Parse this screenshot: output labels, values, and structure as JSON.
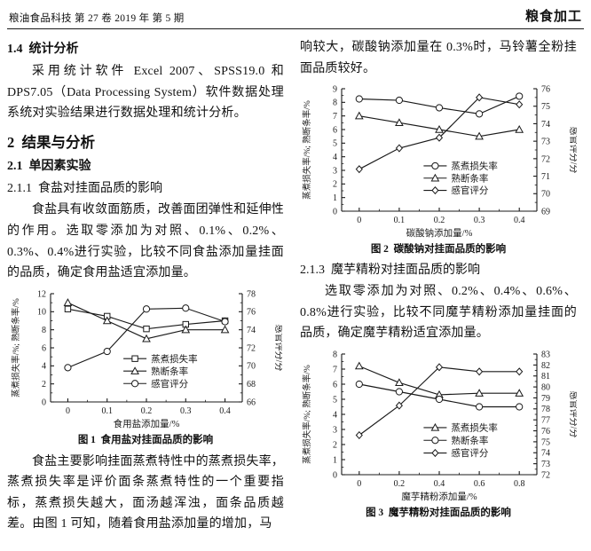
{
  "header": {
    "journal_info": "粮油食品科技 第 27 卷  2019 年  第 5 期",
    "section_label": "粮食加工"
  },
  "left_column": {
    "heading_1_4": "1.4  统计分析",
    "para_stats": "采用统计软件 Excel 2007、SPSS19.0 和 DPS7.05（Data Processing System）软件数据处理系统对实验结果进行数据处理和统计分析。",
    "heading_2": "2  结果与分析",
    "heading_2_1": "2.1  单因素实验",
    "heading_2_1_1": "2.1.1  食盐对挂面品质的影响",
    "para_salt_intro": "食盐具有收敛面筋质，改善面团弹性和延伸性的作用。选取零添加为对照、0.1%、0.2%、0.3%、0.4%进行实验，比较不同食盐添加量挂面的品质，确定食用盐适宜添加量。",
    "para_salt_discussion": "食盐主要影响挂面蒸煮特性中的蒸煮损失率，蒸煮损失率是评价面条蒸煮特性的一个重要指标，蒸煮损失越大，面汤越浑浊，面条品质越差。由图 1 可知，随着食用盐添加量的增加，马"
  },
  "right_column": {
    "para_continuation": "响较大，碳酸钠添加量在 0.3%时，马铃薯全粉挂面品质较好。",
    "heading_2_1_3": "2.1.3  魔芋精粉对挂面品质的影响",
    "para_konjac_intro": "选取零添加为对照、0.2%、0.4%、0.6%、0.8%进行实验，比较不同魔芋精粉添加量挂面的品质，确定魔芋精粉适宜添加量。"
  },
  "chart_style": {
    "line_color": "#1a1a1a",
    "marker_fill": "#ffffff",
    "background": "#ffffff"
  },
  "chart_data": [
    {
      "id": "figure-1",
      "type": "line",
      "caption": "图 1  食用盐对挂面品质的影响",
      "xlabel": "食用盐添加量/%",
      "ylabel_left": "蒸煮损失率/%; 熟断条率/%",
      "ylabel_right": "感官评分/分",
      "x_ticks": [
        "0",
        "0.1",
        "0.2",
        "0.3",
        "0.4"
      ],
      "ylim_left": [
        0,
        12
      ],
      "ystep_left": 2,
      "ylim_right": [
        66,
        78
      ],
      "ystep_right": 2,
      "grid": false,
      "legend": {
        "fx": 0.38,
        "fy": 0.6,
        "dfy": 0.115
      },
      "series": [
        {
          "name": "蒸煮损失率",
          "marker": "square",
          "axis": "left",
          "values": [
            10.3,
            9.5,
            8.1,
            8.6,
            9.0
          ]
        },
        {
          "name": "熟断条率",
          "marker": "triangle",
          "axis": "left",
          "values": [
            11.0,
            9.0,
            7.0,
            8.0,
            8.0
          ]
        },
        {
          "name": "感官评分",
          "marker": "circle",
          "axis": "right",
          "values": [
            69.8,
            71.6,
            76.3,
            76.4,
            74.9
          ]
        }
      ]
    },
    {
      "id": "figure-2",
      "type": "line",
      "caption": "图 2  碳酸钠对挂面品质的影响",
      "xlabel": "碳酸钠添加量/%",
      "ylabel_left": "蒸煮损失率/%; 熟断条率/%",
      "ylabel_right": "感官评分/分",
      "x_ticks": [
        "0",
        "0.1",
        "0.2",
        "0.3",
        "0.4"
      ],
      "ylim_left": [
        0,
        9
      ],
      "ystep_left": 1,
      "ylim_right": [
        69,
        76
      ],
      "ystep_right": 1,
      "grid": false,
      "legend": {
        "fx": 0.42,
        "fy": 0.63,
        "dfy": 0.1
      },
      "series": [
        {
          "name": "蒸煮损失率",
          "marker": "circle",
          "axis": "left",
          "values": [
            8.25,
            8.15,
            7.6,
            7.15,
            8.45
          ]
        },
        {
          "name": "熟断条率",
          "marker": "triangle",
          "axis": "left",
          "values": [
            7.0,
            6.5,
            6.0,
            5.5,
            6.0
          ]
        },
        {
          "name": "感官评分",
          "marker": "diamond",
          "axis": "right",
          "values": [
            71.4,
            72.6,
            73.2,
            75.5,
            75.1
          ]
        }
      ]
    },
    {
      "id": "figure-3",
      "type": "line",
      "caption": "图 3  魔芋精粉对挂面品质的影响",
      "xlabel": "魔芋精粉添加量/%",
      "ylabel_left": "蒸煮损失率/%; 熟断条率/%",
      "ylabel_right": "感官评分/分",
      "x_ticks": [
        "0",
        "0.2",
        "0.4",
        "0.6",
        "0.8"
      ],
      "ylim_left": [
        0,
        8
      ],
      "ystep_left": 1,
      "ylim_right": [
        72,
        83
      ],
      "ystep_right": 1,
      "grid": false,
      "legend": {
        "fx": 0.42,
        "fy": 0.61,
        "dfy": 0.105
      },
      "series": [
        {
          "name": "蒸煮损失率",
          "marker": "triangle",
          "axis": "left",
          "values": [
            7.2,
            6.1,
            5.3,
            5.4,
            5.4
          ]
        },
        {
          "name": "熟断条率",
          "marker": "circle",
          "axis": "left",
          "values": [
            6.0,
            5.5,
            5.0,
            4.5,
            4.5
          ]
        },
        {
          "name": "感官评分",
          "marker": "diamond",
          "axis": "right",
          "values": [
            75.6,
            78.3,
            81.8,
            81.4,
            81.4
          ]
        }
      ]
    }
  ]
}
